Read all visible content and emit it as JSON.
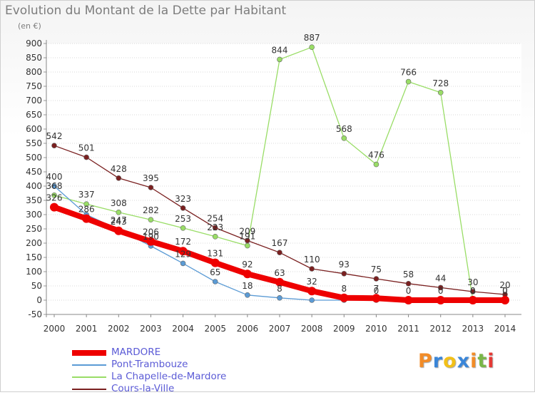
{
  "title": "Evolution du Montant de la Dette par Habitant",
  "unit": "(en €)",
  "logo": "Proxiti",
  "logo_colors": [
    "#f28c28",
    "#3a86d8",
    "#f2c018",
    "#3a86d8",
    "#f28c28",
    "#7ab648",
    "#e53935"
  ],
  "chart_data": {
    "type": "line",
    "title": "Evolution du Montant de la Dette par Habitant",
    "ylabel": "(en €)",
    "xlabel": "",
    "ylim": [
      -50,
      900
    ],
    "y_ticks": [
      -50,
      0,
      50,
      100,
      150,
      200,
      250,
      300,
      350,
      400,
      450,
      500,
      550,
      600,
      650,
      700,
      750,
      800,
      850,
      900
    ],
    "x": [
      2000,
      2001,
      2002,
      2003,
      2004,
      2005,
      2006,
      2007,
      2008,
      2009,
      2010,
      2011,
      2012,
      2013,
      2014
    ],
    "grid": "horizontal",
    "legend_position": "bottom-left",
    "series": [
      {
        "name": "MARDORE",
        "color": "#ee0000",
        "values": [
          326,
          286,
          243,
          206,
          172,
          131,
          92,
          63,
          32,
          8,
          7,
          0,
          0,
          0,
          0
        ],
        "labels": [
          "326",
          "286",
          "243",
          "206",
          "172",
          "131",
          "92",
          "63",
          "32",
          "8",
          "7",
          "0",
          "0",
          "0",
          "0"
        ]
      },
      {
        "name": "Pont-Trambouze",
        "color": "#5b9bd5",
        "values": [
          400,
          300,
          247,
          190,
          129,
          65,
          18,
          8,
          0,
          0,
          0,
          0,
          0,
          0,
          0
        ],
        "labels": [
          "400",
          "",
          "247",
          "190",
          "129",
          "65",
          "18",
          "8",
          "",
          "",
          "0",
          "",
          "",
          "",
          ""
        ]
      },
      {
        "name": "La Chapelle-de-Mardore",
        "color": "#99dd66",
        "values": [
          368,
          337,
          308,
          282,
          253,
          223,
          191,
          844,
          887,
          568,
          476,
          766,
          728,
          0,
          0
        ],
        "labels": [
          "368",
          "337",
          "308",
          "282",
          "253",
          "223",
          "191",
          "844",
          "887",
          "568",
          "476",
          "766",
          "728",
          "0",
          "0"
        ]
      },
      {
        "name": "Cours-la-Ville",
        "color": "#7a2020",
        "values": [
          542,
          501,
          428,
          395,
          323,
          254,
          209,
          167,
          110,
          93,
          75,
          58,
          44,
          30,
          20
        ],
        "labels": [
          "542",
          "501",
          "428",
          "395",
          "323",
          "254",
          "209",
          "167",
          "110",
          "93",
          "75",
          "58",
          "44",
          "30",
          "20"
        ]
      }
    ]
  }
}
